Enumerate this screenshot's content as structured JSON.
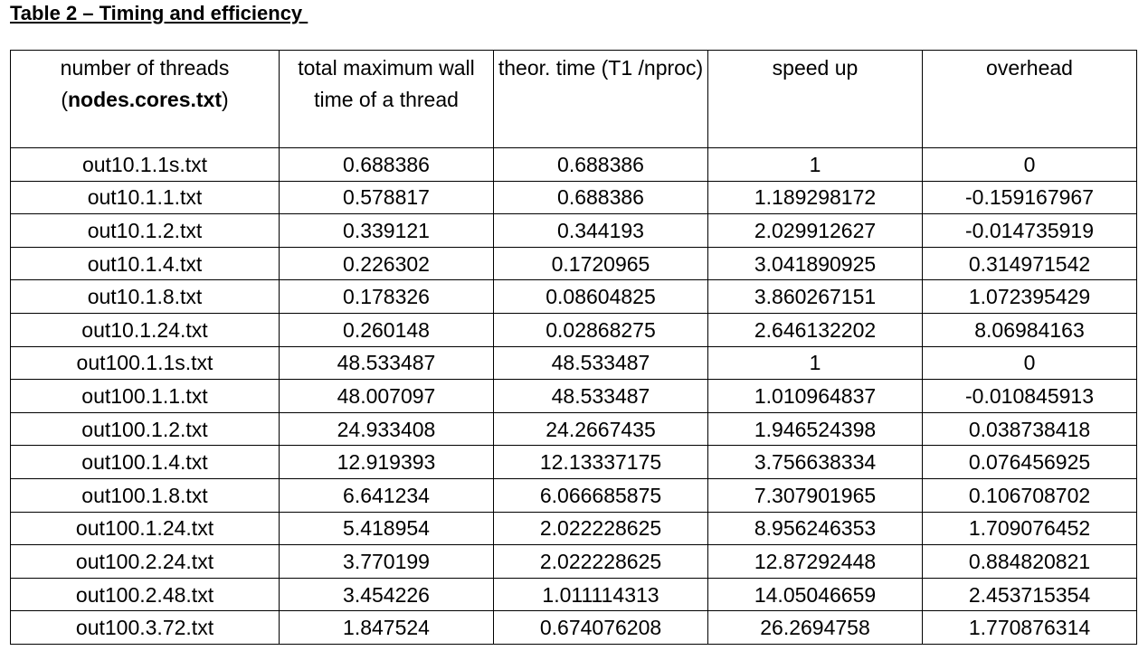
{
  "title": "Table 2 – Timing and efficiency ",
  "headers": {
    "col1_line1": "number of threads",
    "col1_open": "(",
    "col1_bold": "nodes.cores.txt",
    "col1_close": ")",
    "col2": "total maximum wall time of a thread",
    "col3": "theor. time (T1 /nproc)",
    "col4": "speed up",
    "col5": "overhead"
  },
  "rows": [
    [
      "out10.1.1s.txt",
      "0.688386",
      "0.688386",
      "1",
      "0"
    ],
    [
      "out10.1.1.txt",
      "0.578817",
      "0.688386",
      "1.189298172",
      "-0.159167967"
    ],
    [
      "out10.1.2.txt",
      "0.339121",
      "0.344193",
      "2.029912627",
      "-0.014735919"
    ],
    [
      "out10.1.4.txt",
      "0.226302",
      "0.1720965",
      "3.041890925",
      "0.314971542"
    ],
    [
      "out10.1.8.txt",
      "0.178326",
      "0.08604825",
      "3.860267151",
      "1.072395429"
    ],
    [
      "out10.1.24.txt",
      "0.260148",
      "0.02868275",
      "2.646132202",
      "8.06984163"
    ],
    [
      "out100.1.1s.txt",
      "48.533487",
      "48.533487",
      "1",
      "0"
    ],
    [
      "out100.1.1.txt",
      "48.007097",
      "48.533487",
      "1.010964837",
      "-0.010845913"
    ],
    [
      "out100.1.2.txt",
      "24.933408",
      "24.2667435",
      "1.946524398",
      "0.038738418"
    ],
    [
      "out100.1.4.txt",
      "12.919393",
      "12.13337175",
      "3.756638334",
      "0.076456925"
    ],
    [
      "out100.1.8.txt",
      "6.641234",
      "6.066685875",
      "7.307901965",
      "0.106708702"
    ],
    [
      "out100.1.24.txt",
      "5.418954",
      "2.022228625",
      "8.956246353",
      "1.709076452"
    ],
    [
      "out100.2.24.txt",
      "3.770199",
      "2.022228625",
      "12.87292448",
      "0.884820821"
    ],
    [
      "out100.2.48.txt",
      "3.454226",
      "1.011114313",
      "14.05046659",
      "2.453715354"
    ],
    [
      "out100.3.72.txt",
      "1.847524",
      "0.674076208",
      "26.2694758",
      "1.770876314"
    ]
  ]
}
